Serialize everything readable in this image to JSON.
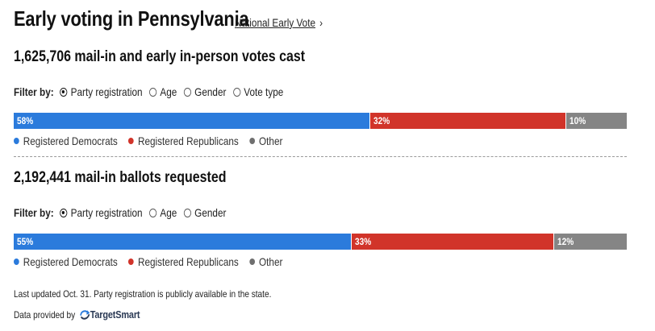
{
  "header": {
    "title": "Early voting in Pennsylvania",
    "link_label": "National Early Vote",
    "link_chevron": "›"
  },
  "section1": {
    "heading": "1,625,706 mail-in and early in-person votes cast",
    "filter_label": "Filter by:",
    "filter_options": [
      "Party registration",
      "Age",
      "Gender",
      "Vote type"
    ],
    "selected_filter": "Party registration",
    "bar": [
      {
        "label": "58%",
        "value": 58,
        "color": "#2b7bdc"
      },
      {
        "label": "32%",
        "value": 32,
        "color": "#d1342a"
      },
      {
        "label": "10%",
        "value": 10,
        "color": "#858585"
      }
    ],
    "legend": [
      {
        "label": "Registered Democrats",
        "color": "#2b7bdc"
      },
      {
        "label": "Registered Republicans",
        "color": "#d1342a"
      },
      {
        "label": "Other",
        "color": "#6f6f6f"
      }
    ]
  },
  "section2": {
    "heading": "2,192,441 mail-in ballots requested",
    "filter_label": "Filter by:",
    "filter_options": [
      "Party registration",
      "Age",
      "Gender"
    ],
    "selected_filter": "Party registration",
    "bar": [
      {
        "label": "55%",
        "value": 55,
        "color": "#2b7bdc"
      },
      {
        "label": "33%",
        "value": 33,
        "color": "#d1342a"
      },
      {
        "label": "12%",
        "value": 12,
        "color": "#858585"
      }
    ],
    "legend": [
      {
        "label": "Registered Democrats",
        "color": "#2b7bdc"
      },
      {
        "label": "Registered Republicans",
        "color": "#d1342a"
      },
      {
        "label": "Other",
        "color": "#6f6f6f"
      }
    ]
  },
  "footer": {
    "note": "Last updated Oct. 31. Party registration is publicly available in the state.",
    "provider_label": "Data provided by",
    "provider_logo": "TargetSmart",
    "provider_icon": "targetsmart-logo-icon"
  }
}
